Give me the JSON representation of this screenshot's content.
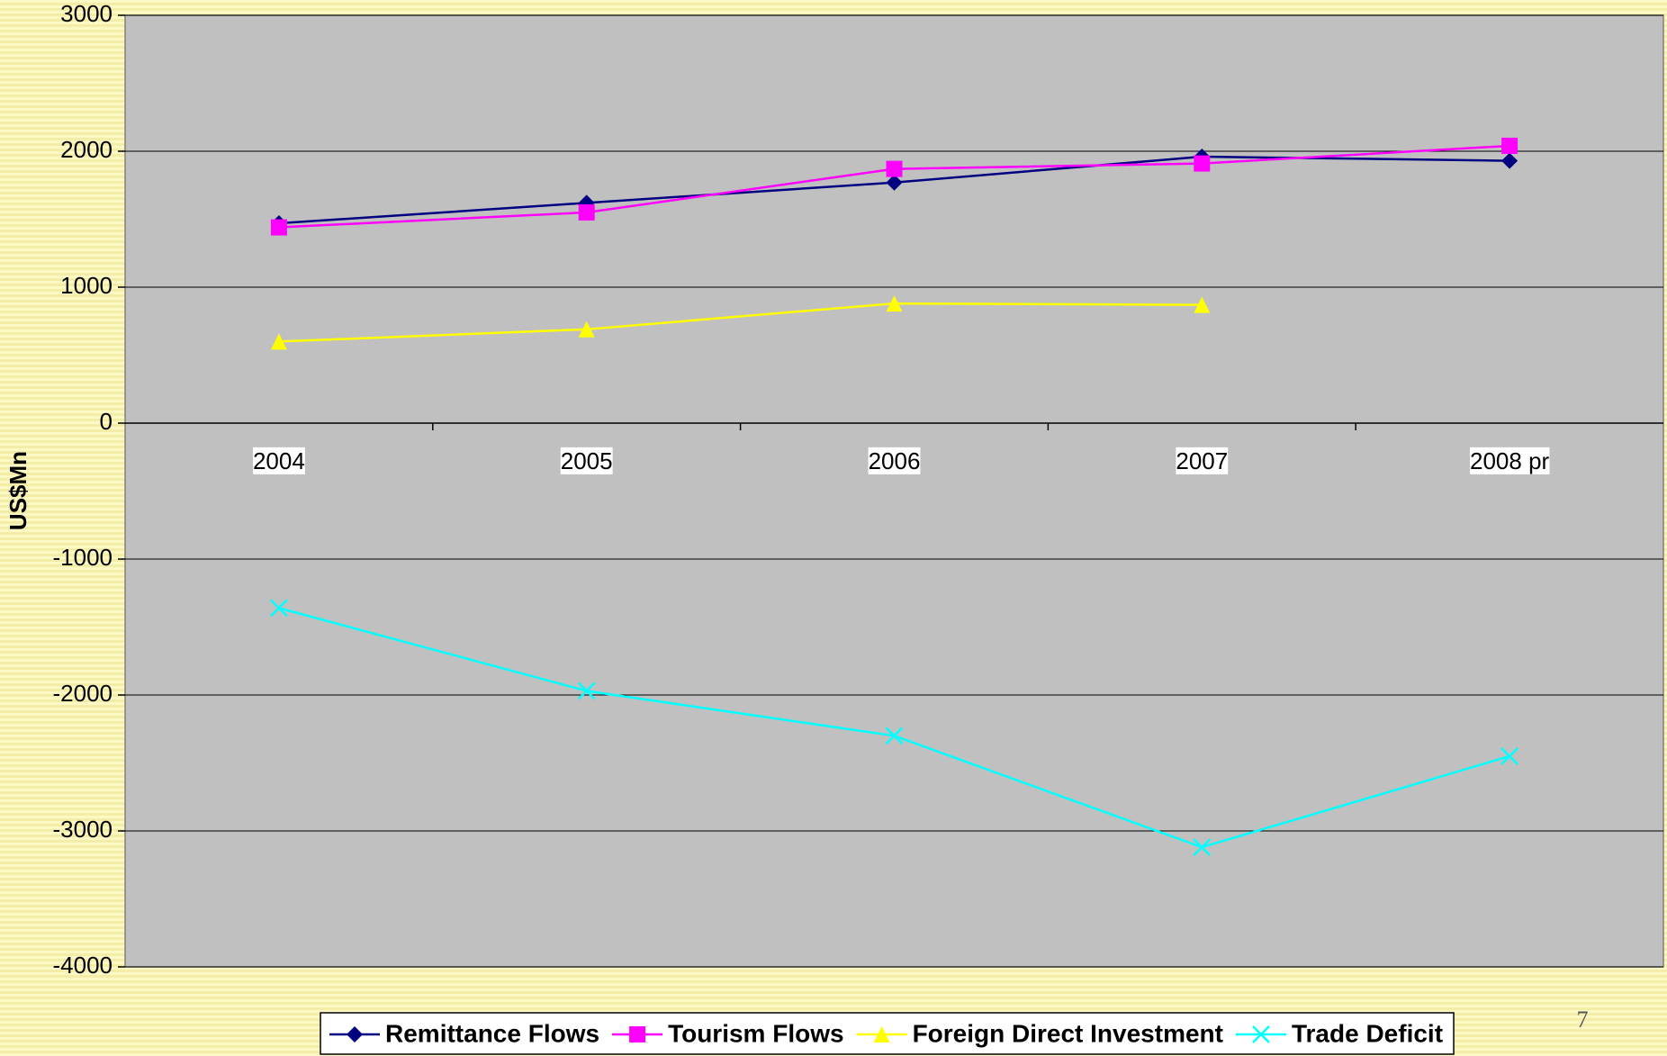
{
  "chart_data": {
    "type": "line",
    "y_label": "US$Mn",
    "categories": [
      "2004",
      "2005",
      "2006",
      "2007",
      "2008 pr"
    ],
    "series": [
      {
        "name": "Remittance Flows",
        "color": "#000080",
        "marker": "diamond",
        "values": [
          1470,
          1620,
          1770,
          1960,
          1930
        ]
      },
      {
        "name": "Tourism Flows",
        "color": "#ff00ff",
        "marker": "square",
        "values": [
          1440,
          1550,
          1870,
          1910,
          2040
        ]
      },
      {
        "name": "Foreign Direct Investment",
        "color": "#ffff00",
        "marker": "triangle",
        "values": [
          600,
          690,
          880,
          870,
          null
        ]
      },
      {
        "name": "Trade Deficit",
        "color": "#00ffff",
        "marker": "x",
        "values": [
          -1360,
          -1970,
          -2300,
          -3120,
          -2450
        ]
      }
    ],
    "ylim": [
      -4000,
      3000
    ],
    "yticks": [
      -4000,
      -3000,
      -2000,
      -1000,
      0,
      1000,
      2000,
      3000
    ],
    "grid": true,
    "legend": "bottom",
    "page_number": "7"
  }
}
